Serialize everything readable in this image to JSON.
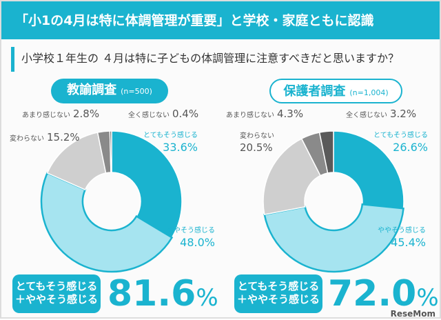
{
  "title": "「小1の4月は特に体調管理が重要」と学校・家庭ともに認識",
  "question": "小学校１年生の ４月は特に子どもの体調管理に注意すべきだと思いますか？",
  "colors": {
    "accent": "#1ab3cf",
    "light": "#a6e4f0",
    "gray": "#cfcfcf",
    "darkgray": "#8a8a8a",
    "darkest": "#5a5a5a"
  },
  "chart_data": [
    {
      "type": "pie",
      "title": "教諭調査",
      "n_label": "(n=500)",
      "categories": [
        "とてもそう感じる",
        "ややそう感じる",
        "変わらない",
        "あまり感じない",
        "全く感じない"
      ],
      "values": [
        33.6,
        48.0,
        15.2,
        2.8,
        0.4
      ],
      "value_labels": [
        "33.6%",
        "48.0%",
        "15.2%",
        "2.8%",
        "0.4%"
      ],
      "summary_label_1": "とてもそう感じる",
      "summary_label_2": "＋ややそう感じる",
      "summary_value": "81.6",
      "summary_unit": "%"
    },
    {
      "type": "pie",
      "title": "保護者調査",
      "n_label": "(n=1,004)",
      "categories": [
        "とてもそう感じる",
        "ややそう感じる",
        "変わらない",
        "あまり感じない",
        "全く感じない"
      ],
      "values": [
        26.6,
        45.4,
        20.5,
        4.3,
        3.2
      ],
      "value_labels": [
        "26.6%",
        "45.4%",
        "20.5%",
        "4.3%",
        "3.2%"
      ],
      "summary_label_1": "とてもそう感じる",
      "summary_label_2": "＋ややそう感じる",
      "summary_value": "72.0",
      "summary_unit": "%"
    }
  ],
  "logo": "ReseMom"
}
